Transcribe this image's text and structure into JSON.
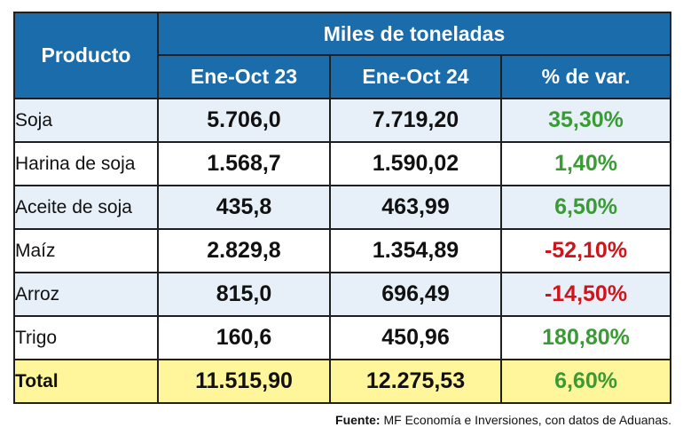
{
  "chart_data": {
    "type": "table",
    "header": {
      "product": "Producto",
      "group": "Miles de toneladas",
      "columns": [
        "Ene-Oct 23",
        "Ene-Oct 24",
        "% de var."
      ]
    },
    "rows": [
      {
        "product": "Soja",
        "v23": "5.706,0",
        "v24": "7.719,20",
        "var": "35,30%",
        "color": "#3a9b35"
      },
      {
        "product": "Harina de soja",
        "v23": "1.568,7",
        "v24": "1.590,02",
        "var": "1,40%",
        "color": "#3a9b35"
      },
      {
        "product": "Aceite de soja",
        "v23": "435,8",
        "v24": "463,99",
        "var": "6,50%",
        "color": "#3a9b35"
      },
      {
        "product": "Maíz",
        "v23": "2.829,8",
        "v24": "1.354,89",
        "var": "-52,10%",
        "color": "#d1141b"
      },
      {
        "product": "Arroz",
        "v23": "815,0",
        "v24": "696,49",
        "var": "-14,50%",
        "color": "#d1141b"
      },
      {
        "product": "Trigo",
        "v23": "160,6",
        "v24": "450,96",
        "var": "180,80%",
        "color": "#3a9b35"
      }
    ],
    "total": {
      "product": "Total",
      "v23": "11.515,90",
      "v24": "12.275,53",
      "var": "6,60%",
      "color": "#3a9b35"
    }
  },
  "source": {
    "label": "Fuente:",
    "text": "MF Economía e Inversiones, con datos de Aduanas."
  },
  "colors": {
    "header_bg": "#1b6cab",
    "row_alt_bg": "#e7f0f8",
    "total_bg": "#fff59a",
    "positive": "#3a9b35",
    "negative": "#d1141b"
  }
}
